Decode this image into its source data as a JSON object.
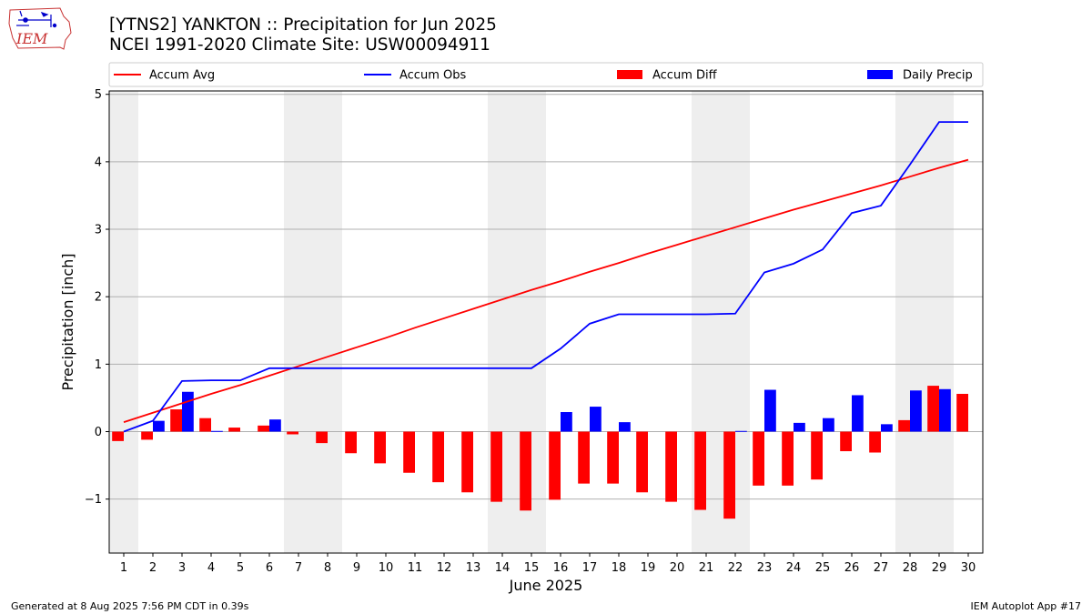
{
  "header": {
    "title": "[YTNS2] YANKTON :: Precipitation for Jun 2025",
    "subtitle": "NCEI 1991-2020 Climate Site: USW00094911",
    "logo_text": "IEM"
  },
  "footer": {
    "generated": "Generated at 8 Aug 2025 7:56 PM CDT in 0.39s",
    "app": "IEM Autoplot App #17"
  },
  "colors": {
    "accum_avg": "#ff0000",
    "accum_obs": "#0000ff",
    "accum_diff": "#ff0000",
    "daily_precip": "#0000ff",
    "weekend_shade": "#eeeeee",
    "grid": "#b0b0b0"
  },
  "chart_data": {
    "type": "bar",
    "xlabel": "June 2025",
    "ylabel": "Precipitation [inch]",
    "xlim": [
      0.5,
      30.5
    ],
    "ylim": [
      -1.8,
      5.05
    ],
    "yticks": [
      -1,
      0,
      1,
      2,
      3,
      4,
      5
    ],
    "ytick_labels": [
      "−1",
      "0",
      "1",
      "2",
      "3",
      "4",
      "5"
    ],
    "grid": "horizontal",
    "legend_position": "top",
    "days": [
      1,
      2,
      3,
      4,
      5,
      6,
      7,
      8,
      9,
      10,
      11,
      12,
      13,
      14,
      15,
      16,
      17,
      18,
      19,
      20,
      21,
      22,
      23,
      24,
      25,
      26,
      27,
      28,
      29,
      30
    ],
    "weekend_ranges": [
      [
        0.5,
        1.5
      ],
      [
        6.5,
        8.5
      ],
      [
        13.5,
        15.5
      ],
      [
        20.5,
        22.5
      ],
      [
        27.5,
        29.5
      ]
    ],
    "series": [
      {
        "name": "Accum Avg",
        "type": "line",
        "values": [
          0.14,
          0.28,
          0.42,
          0.56,
          0.69,
          0.83,
          0.97,
          1.11,
          1.25,
          1.39,
          1.54,
          1.68,
          1.82,
          1.96,
          2.1,
          2.23,
          2.37,
          2.5,
          2.64,
          2.77,
          2.9,
          3.03,
          3.16,
          3.29,
          3.41,
          3.53,
          3.65,
          3.78,
          3.91,
          4.03
        ]
      },
      {
        "name": "Accum Obs",
        "type": "line",
        "values": [
          0.0,
          0.16,
          0.75,
          0.76,
          0.76,
          0.94,
          0.94,
          0.94,
          0.94,
          0.94,
          0.94,
          0.94,
          0.94,
          0.94,
          0.94,
          1.23,
          1.6,
          1.74,
          1.74,
          1.74,
          1.74,
          1.75,
          2.36,
          2.49,
          2.7,
          3.24,
          3.35,
          3.96,
          4.59,
          4.59
        ]
      },
      {
        "name": "Accum Diff",
        "type": "bar",
        "values": [
          -0.14,
          -0.12,
          0.33,
          0.2,
          0.06,
          0.09,
          -0.04,
          -0.17,
          -0.32,
          -0.47,
          -0.61,
          -0.75,
          -0.9,
          -1.04,
          -1.17,
          -1.01,
          -0.77,
          -0.77,
          -0.9,
          -1.04,
          -1.16,
          -1.29,
          -0.8,
          -0.8,
          -0.71,
          -0.29,
          -0.31,
          0.17,
          0.68,
          0.56
        ]
      },
      {
        "name": "Daily Precip",
        "type": "bar",
        "values": [
          0.0,
          0.16,
          0.59,
          0.01,
          0.0,
          0.18,
          0.0,
          0.0,
          0.0,
          0.0,
          0.0,
          0.0,
          0.0,
          0.0,
          0.0,
          0.29,
          0.37,
          0.14,
          0.0,
          0.0,
          0.0,
          0.01,
          0.62,
          0.13,
          0.2,
          0.54,
          0.11,
          0.61,
          0.63,
          0.0
        ]
      }
    ]
  }
}
